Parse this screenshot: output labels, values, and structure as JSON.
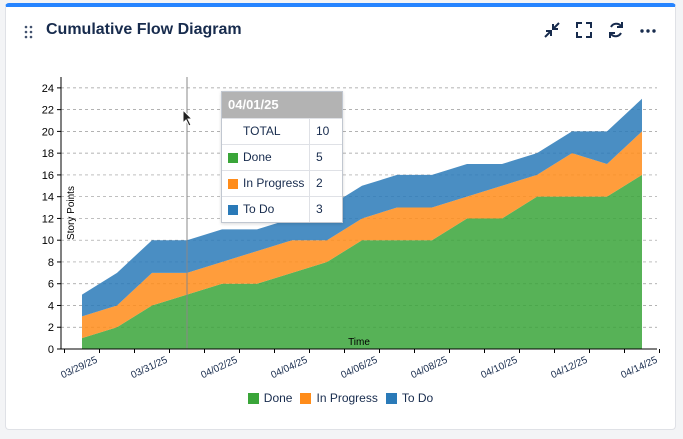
{
  "header": {
    "title": "Cumulative Flow Diagram",
    "icons": [
      "drag-handle-icon",
      "collapse-icon",
      "fullscreen-icon",
      "refresh-icon",
      "more-icon"
    ]
  },
  "colors": {
    "accent": "#2684ff",
    "done": "#3aa539",
    "in_progress": "#ff8c1a",
    "to_do": "#2a7ab8"
  },
  "chart_data": {
    "type": "area",
    "stacked": true,
    "xlabel": "Time",
    "ylabel": "Story Points",
    "ylim": [
      0,
      25
    ],
    "yticks": [
      0,
      2,
      4,
      6,
      8,
      10,
      12,
      14,
      16,
      18,
      20,
      22,
      24
    ],
    "grid": true,
    "legend_position": "bottom",
    "x": [
      "03/29/25",
      "03/30/25",
      "03/31/25",
      "04/01/25",
      "04/02/25",
      "04/03/25",
      "04/04/25",
      "04/05/25",
      "04/06/25",
      "04/07/25",
      "04/08/25",
      "04/09/25",
      "04/10/25",
      "04/11/25",
      "04/12/25",
      "04/13/25",
      "04/14/25"
    ],
    "x_tick_labels": [
      "03/29/25",
      "03/31/25",
      "04/02/25",
      "04/04/25",
      "04/06/25",
      "04/08/25",
      "04/10/25",
      "04/12/25",
      "04/14/25"
    ],
    "series": [
      {
        "name": "Done",
        "values": [
          1,
          2,
          4,
          5,
          6,
          6,
          7,
          8,
          10,
          10,
          10,
          12,
          12,
          14,
          14,
          14,
          16
        ]
      },
      {
        "name": "In Progress",
        "values": [
          2,
          2,
          3,
          2,
          2,
          3,
          3,
          2,
          2,
          3,
          3,
          2,
          3,
          2,
          4,
          3,
          4
        ]
      },
      {
        "name": "To Do",
        "values": [
          2,
          3,
          3,
          3,
          3,
          2,
          2,
          3,
          3,
          3,
          3,
          3,
          2,
          2,
          2,
          3,
          3
        ]
      }
    ]
  },
  "tooltip": {
    "date": "04/01/25",
    "total_label": "TOTAL",
    "total_value": "10",
    "rows": [
      {
        "label": "Done",
        "value": "5"
      },
      {
        "label": "In Progress",
        "value": "2"
      },
      {
        "label": "To Do",
        "value": "3"
      }
    ]
  },
  "legend": [
    "Done",
    "In Progress",
    "To Do"
  ]
}
